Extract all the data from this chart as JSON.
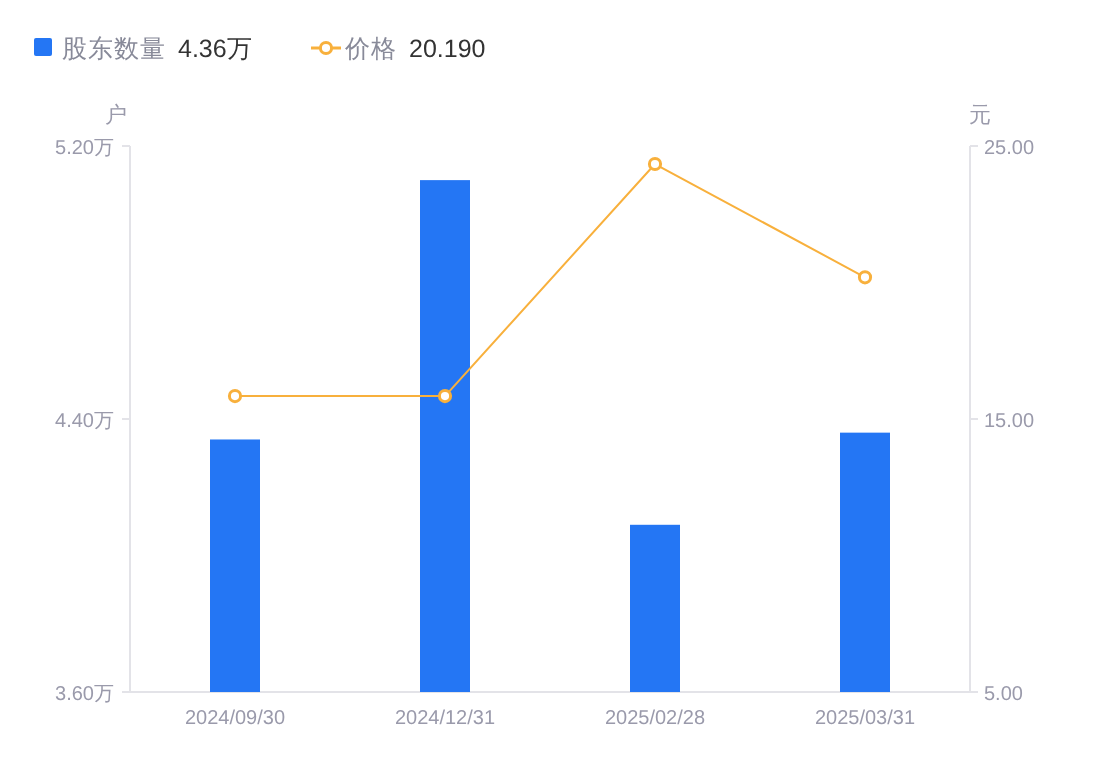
{
  "chart_data": {
    "type": "bar",
    "categories": [
      "2024/09/30",
      "2024/12/31",
      "2025/02/28",
      "2025/03/31"
    ],
    "series": [
      {
        "name": "股东数量",
        "color": "#2476f4",
        "values": [
          4.34,
          5.1,
          4.09,
          4.36
        ]
      },
      {
        "name": "价格",
        "type": "line",
        "axis": "y2",
        "color": "#f8b03c",
        "values": [
          15.84,
          15.84,
          24.34,
          20.19
        ]
      }
    ],
    "ylabel": "户",
    "y2label": "元",
    "ylim": [
      3.6,
      5.2
    ],
    "yticks": [
      {
        "value": 3.6,
        "label": "3.60万"
      },
      {
        "value": 4.4,
        "label": "4.40万"
      },
      {
        "value": 5.2,
        "label": "5.20万"
      }
    ],
    "y2lim": [
      5,
      25
    ],
    "y2ticks": [
      {
        "value": 5,
        "label": "5.00"
      },
      {
        "value": 15,
        "label": "15.00"
      },
      {
        "value": 25,
        "label": "25.00"
      }
    ],
    "annotations": [
      "4.36万",
      "20.190"
    ],
    "legend": "top left",
    "marker": "circle",
    "grid": false
  }
}
